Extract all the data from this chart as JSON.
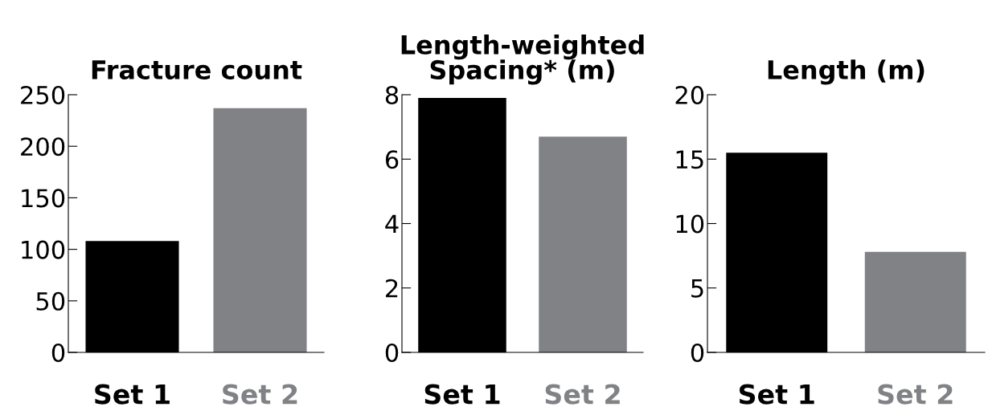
{
  "chart_data": [
    {
      "type": "bar",
      "title": "Fracture count",
      "categories": [
        "Set 1",
        "Set 2"
      ],
      "values": [
        108,
        237
      ],
      "colors": [
        "#000000",
        "#808285"
      ],
      "ylim": [
        0,
        250
      ],
      "yticks": [
        0,
        50,
        100,
        150,
        200,
        250
      ],
      "grid": false,
      "legend": false
    },
    {
      "type": "bar",
      "title": "Length-weighted\nSpacing* (m)",
      "categories": [
        "Set 1",
        "Set 2"
      ],
      "values": [
        7.9,
        6.7
      ],
      "colors": [
        "#000000",
        "#808285"
      ],
      "ylim": [
        0,
        8
      ],
      "yticks": [
        0,
        2,
        4,
        6,
        8
      ],
      "grid": false,
      "legend": false
    },
    {
      "type": "bar",
      "title": "Length (m)",
      "categories": [
        "Set 1",
        "Set 2"
      ],
      "values": [
        15.5,
        7.8
      ],
      "colors": [
        "#000000",
        "#808285"
      ],
      "ylim": [
        0,
        20
      ],
      "yticks": [
        0,
        5,
        10,
        15,
        20
      ],
      "grid": false,
      "legend": false
    }
  ]
}
